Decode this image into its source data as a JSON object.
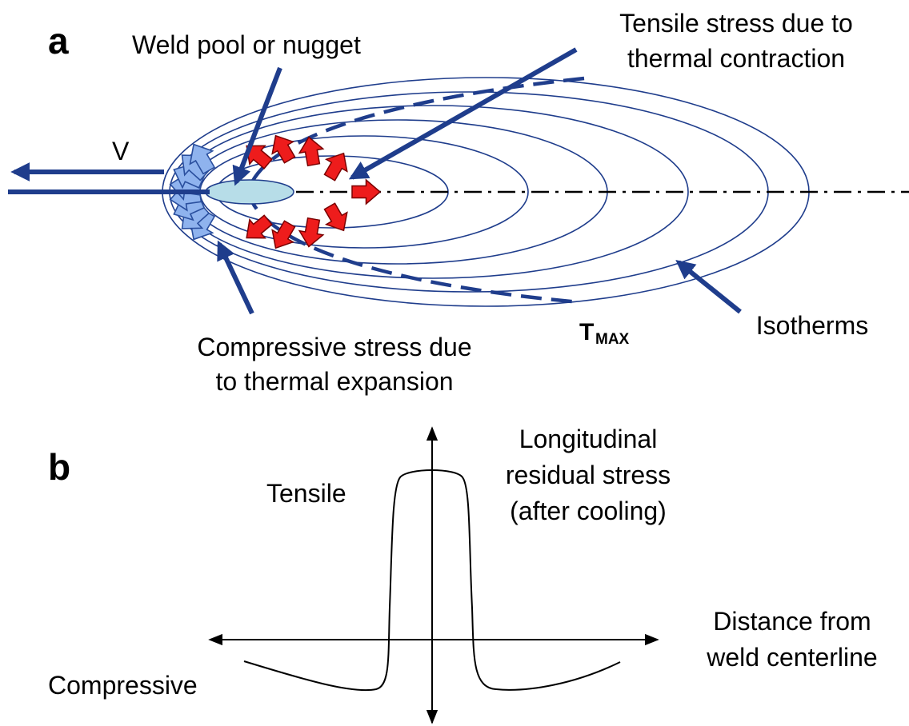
{
  "panel_a": {
    "label": "a",
    "weld_pool": "Weld pool or nugget",
    "tensile": [
      "Tensile stress due to",
      "thermal contraction"
    ],
    "velocity": "V",
    "compressive": [
      "Compressive stress due",
      "to thermal expansion"
    ],
    "tmax": {
      "main": "T",
      "sub": "MAX"
    },
    "isotherms": "Isotherms"
  },
  "panel_b": {
    "label": "b",
    "tensile": "Tensile",
    "stress": [
      "Longitudinal",
      "residual stress",
      "(after cooling)"
    ],
    "distance": [
      "Distance from",
      "weld centerline"
    ],
    "compressive": "Compressive"
  }
}
